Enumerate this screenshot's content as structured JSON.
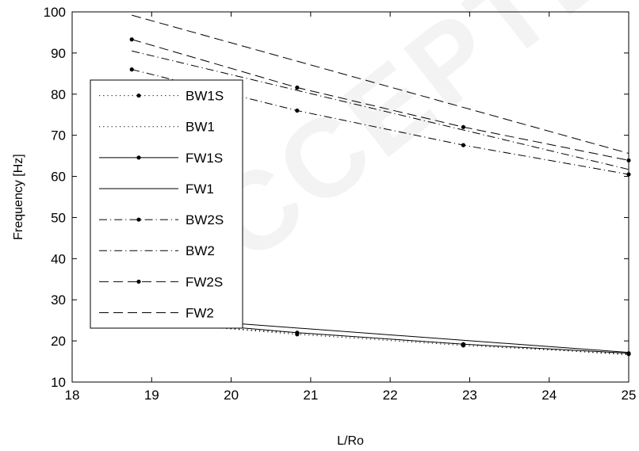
{
  "chart_data": {
    "type": "line",
    "xlabel": "L/Ro",
    "ylabel": "Frequency [Hz]",
    "xlim": [
      18,
      25
    ],
    "ylim": [
      10,
      100
    ],
    "xticks": [
      18,
      19,
      20,
      21,
      22,
      23,
      24,
      25
    ],
    "yticks": [
      10,
      20,
      30,
      40,
      50,
      60,
      70,
      80,
      90,
      100
    ],
    "grid": false,
    "legend_position": "left",
    "series": [
      {
        "name": "BW1S",
        "style": "dotted",
        "markers": true,
        "x": [
          18.75,
          20.83,
          22.92,
          25.0
        ],
        "y": [
          24.9,
          21.6,
          18.9,
          16.8
        ]
      },
      {
        "name": "BW1",
        "style": "dotted",
        "markers": false,
        "x": [
          18.75,
          25.0
        ],
        "y": [
          24.6,
          16.6
        ]
      },
      {
        "name": "FW1S",
        "style": "solid",
        "markers": true,
        "x": [
          18.75,
          20.83,
          22.92,
          25.0
        ],
        "y": [
          25.5,
          22.0,
          19.2,
          17.0
        ]
      },
      {
        "name": "FW1",
        "style": "solid",
        "markers": false,
        "x": [
          18.75,
          25.0
        ],
        "y": [
          26.1,
          17.2
        ]
      },
      {
        "name": "BW2S",
        "style": "dashdot",
        "markers": true,
        "x": [
          18.75,
          20.83,
          22.92,
          25.0
        ],
        "y": [
          86.0,
          76.0,
          67.6,
          60.5
        ]
      },
      {
        "name": "BW2",
        "style": "dashdot",
        "markers": false,
        "x": [
          18.75,
          25.0
        ],
        "y": [
          90.5,
          61.7
        ]
      },
      {
        "name": "FW2S",
        "style": "dashed",
        "markers": true,
        "x": [
          18.75,
          20.83,
          22.92,
          25.0
        ],
        "y": [
          93.3,
          81.6,
          72.0,
          63.9
        ]
      },
      {
        "name": "FW2",
        "style": "dashed",
        "markers": false,
        "x": [
          18.75,
          25.0
        ],
        "y": [
          99.2,
          65.6
        ]
      }
    ],
    "colors": {
      "line": "#000000",
      "axes": "#000000",
      "background": "#ffffff"
    }
  },
  "watermark": "ACCEPTED M"
}
